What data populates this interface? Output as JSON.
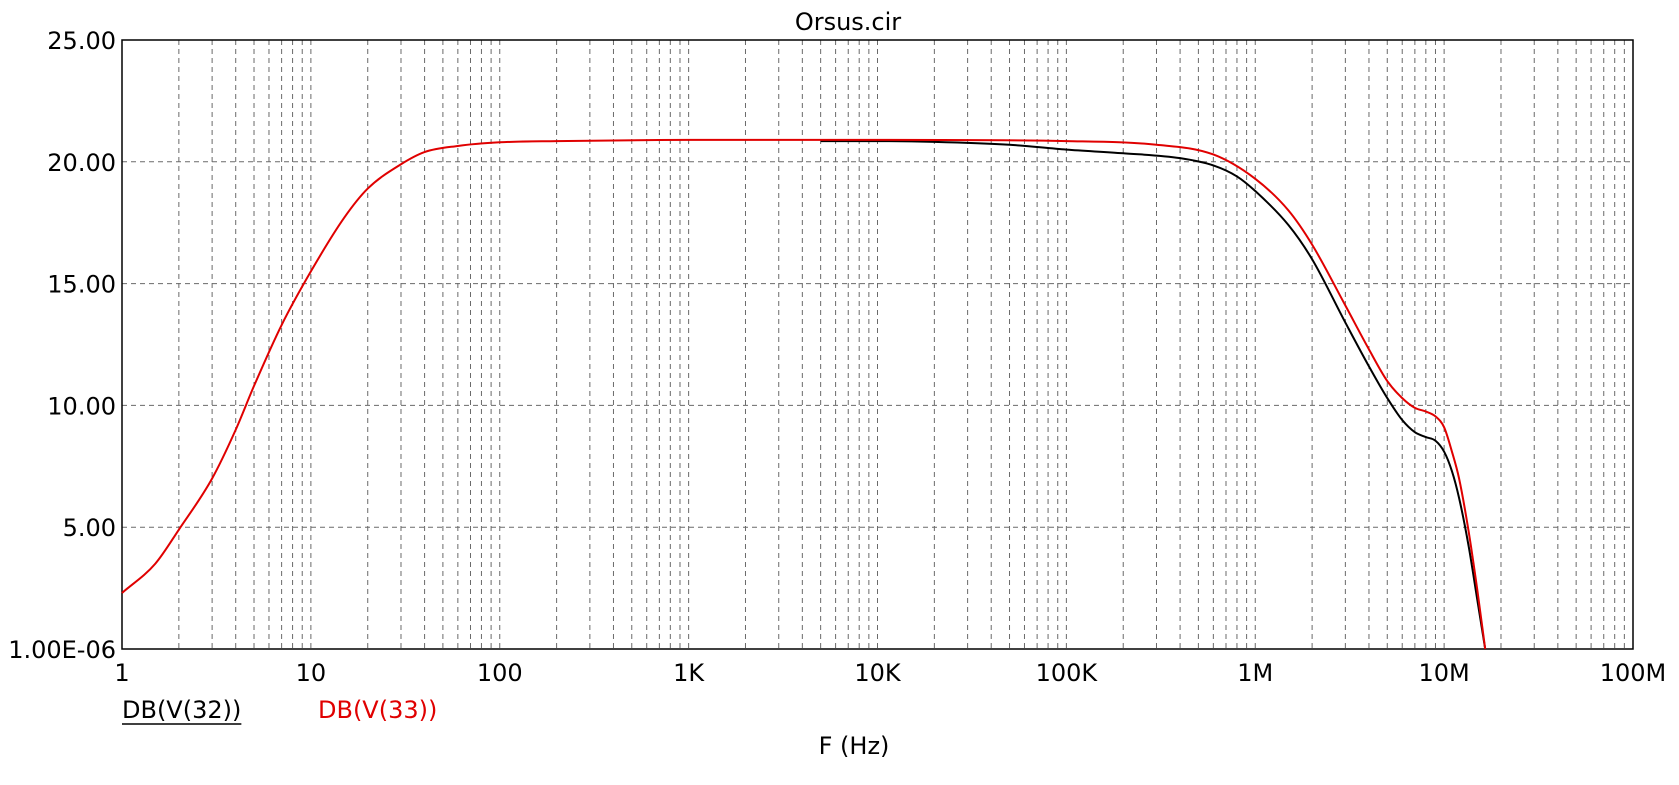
{
  "chart_data": {
    "type": "line",
    "title": "Orsus.cir",
    "xlabel": "F (Hz)",
    "ylabel": "",
    "x_scale": "log",
    "xlim": [
      1,
      100000000
    ],
    "ylim": [
      0,
      25
    ],
    "grid": true,
    "x_ticks": [
      {
        "value": 1,
        "label": "1"
      },
      {
        "value": 10,
        "label": "10"
      },
      {
        "value": 100,
        "label": "100"
      },
      {
        "value": 1000,
        "label": "1K"
      },
      {
        "value": 10000,
        "label": "10K"
      },
      {
        "value": 100000,
        "label": "100K"
      },
      {
        "value": 1000000,
        "label": "1M"
      },
      {
        "value": 10000000,
        "label": "10M"
      },
      {
        "value": 100000000,
        "label": "100M"
      }
    ],
    "y_ticks": [
      {
        "value": 0,
        "label": "1.00E-06"
      },
      {
        "value": 5,
        "label": "5.00"
      },
      {
        "value": 10,
        "label": "10.00"
      },
      {
        "value": 15,
        "label": "15.00"
      },
      {
        "value": 20,
        "label": "20.00"
      },
      {
        "value": 25,
        "label": "25.00"
      }
    ],
    "series": [
      {
        "name": "DB(V(32))",
        "color": "#000000",
        "points": [
          [
            5000,
            20.85
          ],
          [
            10000,
            20.85
          ],
          [
            20000,
            20.82
          ],
          [
            50000,
            20.7
          ],
          [
            100000,
            20.5
          ],
          [
            200000,
            20.35
          ],
          [
            400000,
            20.15
          ],
          [
            600000,
            19.85
          ],
          [
            800000,
            19.4
          ],
          [
            1000000,
            18.8
          ],
          [
            1500000,
            17.4
          ],
          [
            2000000,
            16.0
          ],
          [
            3000000,
            13.4
          ],
          [
            4000000,
            11.6
          ],
          [
            5000000,
            10.3
          ],
          [
            6000000,
            9.4
          ],
          [
            7000000,
            8.9
          ],
          [
            8000000,
            8.7
          ],
          [
            9000000,
            8.55
          ],
          [
            10000000,
            8.1
          ],
          [
            11000000,
            7.3
          ],
          [
            12000000,
            6.2
          ],
          [
            13500000,
            4.2
          ],
          [
            15000000,
            2.0
          ],
          [
            16500000,
            0
          ]
        ]
      },
      {
        "name": "DB(V(33))",
        "color": "#e00000",
        "points": [
          [
            1,
            2.3
          ],
          [
            1.5,
            3.5
          ],
          [
            2,
            4.9
          ],
          [
            3,
            7.0
          ],
          [
            4,
            9.0
          ],
          [
            5,
            10.8
          ],
          [
            7,
            13.3
          ],
          [
            10,
            15.5
          ],
          [
            15,
            17.7
          ],
          [
            20,
            18.9
          ],
          [
            30,
            19.9
          ],
          [
            40,
            20.4
          ],
          [
            60,
            20.65
          ],
          [
            100,
            20.8
          ],
          [
            200,
            20.85
          ],
          [
            1000,
            20.9
          ],
          [
            10000,
            20.9
          ],
          [
            100000,
            20.85
          ],
          [
            300000,
            20.7
          ],
          [
            600000,
            20.3
          ],
          [
            1000000,
            19.3
          ],
          [
            1500000,
            18.0
          ],
          [
            2000000,
            16.6
          ],
          [
            3000000,
            14.1
          ],
          [
            4000000,
            12.3
          ],
          [
            5000000,
            11.0
          ],
          [
            6000000,
            10.3
          ],
          [
            7000000,
            9.9
          ],
          [
            8000000,
            9.75
          ],
          [
            9000000,
            9.55
          ],
          [
            10000000,
            9.1
          ],
          [
            11000000,
            8.1
          ],
          [
            12000000,
            7.0
          ],
          [
            13500000,
            4.8
          ],
          [
            15000000,
            2.4
          ],
          [
            16500000,
            0
          ]
        ]
      }
    ]
  }
}
